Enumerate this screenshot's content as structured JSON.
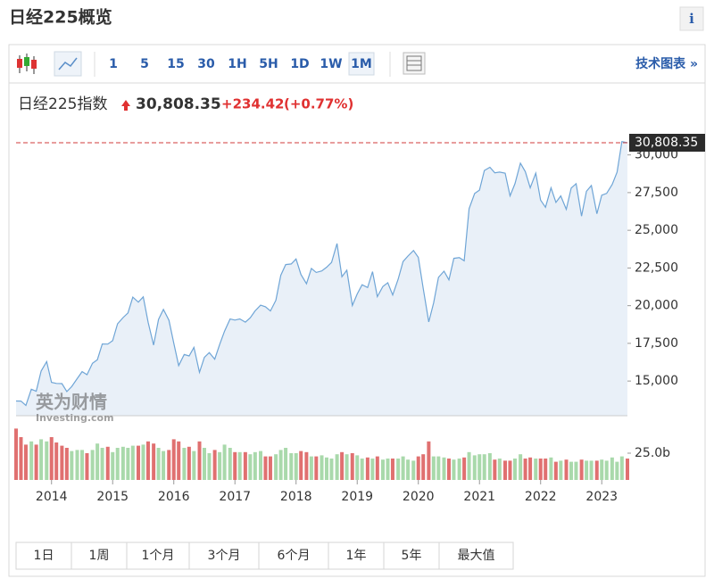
{
  "header": {
    "title": "日经225概览",
    "info": "i"
  },
  "toolbar": {
    "intervals": [
      "1",
      "5",
      "15",
      "30",
      "1H",
      "5H",
      "1D",
      "1W",
      "1M"
    ],
    "selected": "1M",
    "link": "技术图表 »"
  },
  "quote": {
    "name": "日经225指数",
    "price": "30,808.35",
    "change": "+234.42",
    "change_pct": "(+0.77%)"
  },
  "watermark": {
    "cn": "英为财情",
    "en": "Investing.com"
  },
  "chart_data": {
    "type": "area",
    "x": [
      2013.42,
      2013.5,
      2013.58,
      2013.67,
      2013.75,
      2013.83,
      2013.92,
      2014,
      2014.08,
      2014.17,
      2014.25,
      2014.33,
      2014.42,
      2014.5,
      2014.58,
      2014.67,
      2014.75,
      2014.83,
      2014.92,
      2015,
      2015.08,
      2015.17,
      2015.25,
      2015.33,
      2015.42,
      2015.5,
      2015.58,
      2015.67,
      2015.75,
      2015.83,
      2015.92,
      2016,
      2016.08,
      2016.17,
      2016.25,
      2016.33,
      2016.42,
      2016.5,
      2016.58,
      2016.67,
      2016.75,
      2016.83,
      2016.92,
      2017,
      2017.08,
      2017.17,
      2017.25,
      2017.33,
      2017.42,
      2017.5,
      2017.58,
      2017.67,
      2017.75,
      2017.83,
      2017.92,
      2018,
      2018.08,
      2018.17,
      2018.25,
      2018.33,
      2018.42,
      2018.5,
      2018.58,
      2018.67,
      2018.75,
      2018.83,
      2018.92,
      2019,
      2019.08,
      2019.17,
      2019.25,
      2019.33,
      2019.42,
      2019.5,
      2019.58,
      2019.67,
      2019.75,
      2019.83,
      2019.92,
      2020,
      2020.08,
      2020.17,
      2020.25,
      2020.33,
      2020.42,
      2020.5,
      2020.58,
      2020.67,
      2020.75,
      2020.83,
      2020.92,
      2021,
      2021.08,
      2021.17,
      2021.25,
      2021.33,
      2021.42,
      2021.5,
      2021.58,
      2021.67,
      2021.75,
      2021.83,
      2021.92,
      2022,
      2022.08,
      2022.17,
      2022.25,
      2022.33,
      2022.42,
      2022.5,
      2022.58,
      2022.67,
      2022.75,
      2022.83,
      2022.92,
      2023,
      2023.08,
      2023.17,
      2023.25,
      2023.33,
      2023.42
    ],
    "series": [
      {
        "color": "#6fa5d6",
        "fill": "#e9f0f8",
        "values": [
          13677,
          13668,
          13389,
          14456,
          14328,
          15662,
          16291,
          14914,
          14841,
          14828,
          14304,
          14632,
          15162,
          15621,
          15425,
          16174,
          16414,
          17460,
          17451,
          17674,
          18798,
          19207,
          19520,
          20563,
          20236,
          20585,
          18890,
          17388,
          19083,
          19747,
          19034,
          17518,
          16027,
          16759,
          16666,
          17235,
          15576,
          16569,
          16887,
          16450,
          17425,
          18308,
          19114,
          19041,
          19119,
          18909,
          19197,
          19651,
          20033,
          19925,
          19646,
          20356,
          22012,
          22725,
          22765,
          23098,
          22068,
          21454,
          22468,
          22202,
          22305,
          22554,
          22865,
          24120,
          21920,
          22351,
          20015,
          20773,
          21385,
          21206,
          22259,
          20601,
          21276,
          21522,
          20704,
          21756,
          22927,
          23294,
          23657,
          23205,
          21143,
          18917,
          20194,
          21878,
          22288,
          21710,
          23140,
          23185,
          22977,
          26434,
          27444,
          27663,
          28966,
          29179,
          28813,
          28860,
          28792,
          27284,
          28090,
          29453,
          28893,
          27822,
          28792,
          27002,
          26527,
          27821,
          26848,
          27280,
          26393,
          27802,
          28092,
          25937,
          27587,
          27969,
          26095,
          27327,
          27446,
          28041,
          28856,
          30888,
          30808.35
        ]
      },
      {
        "type": "bar",
        "colors": {
          "up": "#a9d9ab",
          "down": "#e07070"
        },
        "values": [
          48,
          40,
          33,
          36,
          33,
          38,
          36,
          40,
          35,
          32,
          30,
          27,
          28,
          28,
          25,
          28,
          34,
          30,
          31,
          26,
          30,
          31,
          30,
          32,
          32,
          33,
          36,
          34,
          30,
          27,
          28,
          38,
          36,
          30,
          31,
          27,
          36,
          30,
          25,
          28,
          26,
          33,
          30,
          26,
          26,
          26,
          24,
          26,
          27,
          22,
          22,
          24,
          28,
          30,
          25,
          25,
          27,
          26,
          22,
          22,
          23,
          21,
          20,
          24,
          26,
          24,
          25,
          23,
          20,
          21,
          20,
          22,
          19,
          20,
          20,
          20,
          22,
          19,
          18,
          22,
          24,
          36,
          22,
          22,
          21,
          20,
          19,
          20,
          21,
          26,
          23,
          24,
          24,
          25,
          19,
          20,
          18,
          18,
          20,
          24,
          20,
          21,
          20,
          20,
          20,
          21,
          17,
          18,
          19,
          17,
          17,
          19,
          18,
          18,
          18,
          19,
          18,
          21,
          17,
          22,
          20
        ]
      }
    ],
    "last_label": "30,808.35",
    "last_line_color": "#d23b3b",
    "xlim": [
      2013.42,
      2023.42
    ],
    "xticks": [
      2014,
      2015,
      2016,
      2017,
      2018,
      2019,
      2020,
      2021,
      2022,
      2023
    ],
    "ylim": [
      12700,
      31400
    ],
    "yticks": [
      {
        "value": 15000,
        "label": "15,000"
      },
      {
        "value": 17500,
        "label": "17,500"
      },
      {
        "value": 20000,
        "label": "20,000"
      },
      {
        "value": 22500,
        "label": "22,500"
      },
      {
        "value": 25000,
        "label": "25,000"
      },
      {
        "value": 27500,
        "label": "27,500"
      },
      {
        "value": 30000,
        "label": "30,000"
      }
    ],
    "vol_ylim": [
      0,
      50
    ],
    "vol_yticks": [
      {
        "value": 25,
        "label": "25.0b"
      }
    ]
  },
  "ranges": [
    "1日",
    "1周",
    "1个月",
    "3个月",
    "6个月",
    "1年",
    "5年",
    "最大值"
  ]
}
